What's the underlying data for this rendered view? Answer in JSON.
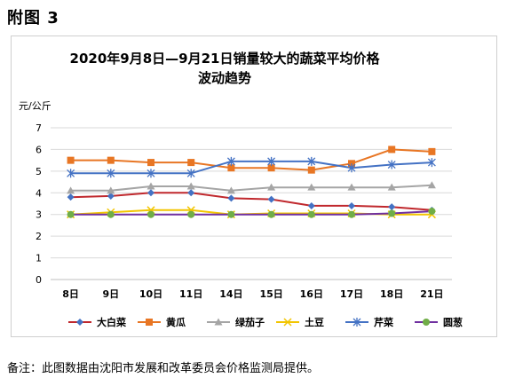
{
  "figure_label": "附图 3",
  "note": "备注：此图数据由沈阳市发展和改革委员会价格监测局提供。",
  "chart_data": {
    "type": "line",
    "title": "2020年9月8日—9月21日销量较大的蔬菜平均价格",
    "subtitle": "波动趋势",
    "ylabel": "元/公斤",
    "xlabel": "",
    "categories": [
      "8日",
      "9日",
      "10日",
      "11日",
      "14日",
      "15日",
      "16日",
      "17日",
      "18日",
      "21日"
    ],
    "ylim": [
      0,
      7
    ],
    "yticks": [
      0,
      1,
      2,
      3,
      4,
      5,
      6,
      7
    ],
    "grid": true,
    "legend": "bottom",
    "series": [
      {
        "name": "大白菜",
        "color": "#c0282d",
        "marker": "diamond-blue",
        "values": [
          3.8,
          3.85,
          4.0,
          4.0,
          3.75,
          3.7,
          3.4,
          3.4,
          3.35,
          3.2
        ]
      },
      {
        "name": "黄瓜",
        "color": "#e87624",
        "marker": "square",
        "values": [
          5.5,
          5.5,
          5.4,
          5.4,
          5.15,
          5.15,
          5.05,
          5.35,
          6.0,
          5.9
        ]
      },
      {
        "name": "绿茄子",
        "color": "#a5a5a5",
        "marker": "triangle",
        "values": [
          4.1,
          4.1,
          4.3,
          4.3,
          4.1,
          4.25,
          4.25,
          4.25,
          4.25,
          4.35
        ]
      },
      {
        "name": "土豆",
        "color": "#f2c500",
        "marker": "x",
        "values": [
          3.0,
          3.1,
          3.2,
          3.2,
          3.0,
          3.05,
          3.05,
          3.05,
          3.0,
          3.0
        ]
      },
      {
        "name": "芹菜",
        "color": "#4472c4",
        "marker": "star",
        "values": [
          4.9,
          4.9,
          4.9,
          4.9,
          5.45,
          5.45,
          5.45,
          5.15,
          5.3,
          5.4
        ]
      },
      {
        "name": "圆葱",
        "color": "#7030a0",
        "marker": "circle-green",
        "values": [
          3.0,
          3.0,
          3.0,
          3.0,
          3.0,
          3.0,
          3.0,
          3.0,
          3.05,
          3.15
        ]
      }
    ]
  }
}
